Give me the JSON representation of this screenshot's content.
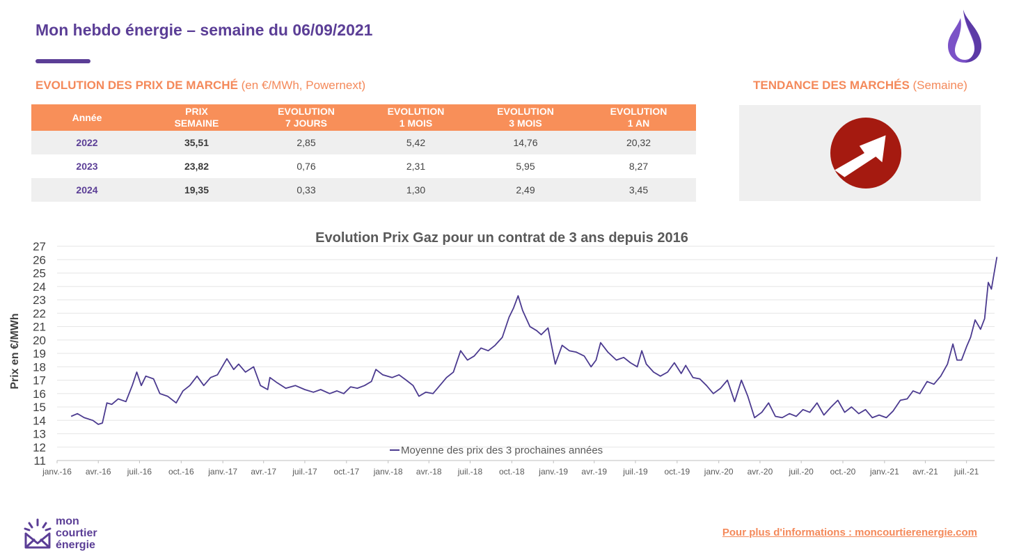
{
  "header": {
    "title": "Mon hebdo énergie – semaine du 06/09/2021"
  },
  "market_prices": {
    "title_bold": "EVOLUTION DES PRIX DE MARCHÉ",
    "title_rest": " (en €/MWh, Powernext)",
    "columns": [
      [
        "Année"
      ],
      [
        "PRIX",
        "SEMAINE"
      ],
      [
        "EVOLUTION",
        "7 JOURS"
      ],
      [
        "EVOLUTION",
        "1 MOIS"
      ],
      [
        "EVOLUTION",
        "3 MOIS"
      ],
      [
        "EVOLUTION",
        "1 AN"
      ]
    ],
    "rows": [
      [
        "2022",
        "35,51",
        "2,85",
        "5,42",
        "14,76",
        "20,32"
      ],
      [
        "2023",
        "23,82",
        "0,76",
        "2,31",
        "5,95",
        "8,27"
      ],
      [
        "2024",
        "19,35",
        "0,33",
        "1,30",
        "2,49",
        "3,45"
      ]
    ]
  },
  "market_trend": {
    "title_bold": "TENDANCE DES MARCHÉS",
    "title_rest": " (Semaine)",
    "direction_icon": "arrow-up-right-icon"
  },
  "chart_data": {
    "type": "line",
    "title": "Evolution Prix Gaz pour un contrat de 3 ans depuis 2016",
    "ylabel": "Prix en €/MWh",
    "xlabel": "",
    "ylim": [
      11,
      27
    ],
    "yticks": [
      11,
      12,
      13,
      14,
      15,
      16,
      17,
      18,
      19,
      20,
      21,
      22,
      23,
      24,
      25,
      26,
      27
    ],
    "x_tick_labels": [
      "janv.-16",
      "avr.-16",
      "juil.-16",
      "oct.-16",
      "janv.-17",
      "avr.-17",
      "juil.-17",
      "oct.-17",
      "janv.-18",
      "avr.-18",
      "juil.-18",
      "oct.-18",
      "janv.-19",
      "avr.-19",
      "juil.-19",
      "oct.-19",
      "janv.-20",
      "avr.-20",
      "juil.-20",
      "oct.-20",
      "janv.-21",
      "avr.-21",
      "juil.-21"
    ],
    "x_start": "2016-01",
    "x_end": "2021-09",
    "grid": true,
    "legend_position": "bottom",
    "series": [
      {
        "name": "Moyenne des prix des 3 prochaines années",
        "color": "#4b3a8f",
        "points": [
          [
            "2016-02-01",
            14.3
          ],
          [
            "2016-02-15",
            14.5
          ],
          [
            "2016-03-01",
            14.2
          ],
          [
            "2016-03-20",
            14.0
          ],
          [
            "2016-04-01",
            13.7
          ],
          [
            "2016-04-10",
            13.8
          ],
          [
            "2016-04-20",
            15.3
          ],
          [
            "2016-05-01",
            15.2
          ],
          [
            "2016-05-15",
            15.6
          ],
          [
            "2016-06-01",
            15.4
          ],
          [
            "2016-06-15",
            16.6
          ],
          [
            "2016-06-25",
            17.6
          ],
          [
            "2016-07-05",
            16.6
          ],
          [
            "2016-07-15",
            17.3
          ],
          [
            "2016-08-01",
            17.1
          ],
          [
            "2016-08-15",
            16.0
          ],
          [
            "2016-09-01",
            15.8
          ],
          [
            "2016-09-20",
            15.3
          ],
          [
            "2016-10-05",
            16.2
          ],
          [
            "2016-10-20",
            16.6
          ],
          [
            "2016-11-05",
            17.3
          ],
          [
            "2016-11-20",
            16.6
          ],
          [
            "2016-12-05",
            17.2
          ],
          [
            "2016-12-20",
            17.4
          ],
          [
            "2017-01-10",
            18.6
          ],
          [
            "2017-01-25",
            17.8
          ],
          [
            "2017-02-05",
            18.2
          ],
          [
            "2017-02-20",
            17.6
          ],
          [
            "2017-03-10",
            18.0
          ],
          [
            "2017-03-25",
            16.6
          ],
          [
            "2017-04-10",
            16.3
          ],
          [
            "2017-04-15",
            17.2
          ],
          [
            "2017-05-01",
            16.8
          ],
          [
            "2017-05-20",
            16.4
          ],
          [
            "2017-06-10",
            16.6
          ],
          [
            "2017-07-01",
            16.3
          ],
          [
            "2017-07-20",
            16.1
          ],
          [
            "2017-08-05",
            16.3
          ],
          [
            "2017-08-25",
            16.0
          ],
          [
            "2017-09-10",
            16.2
          ],
          [
            "2017-09-25",
            16.0
          ],
          [
            "2017-10-10",
            16.5
          ],
          [
            "2017-10-25",
            16.4
          ],
          [
            "2017-11-10",
            16.6
          ],
          [
            "2017-11-25",
            16.9
          ],
          [
            "2017-12-05",
            17.8
          ],
          [
            "2017-12-20",
            17.4
          ],
          [
            "2018-01-10",
            17.2
          ],
          [
            "2018-01-25",
            17.4
          ],
          [
            "2018-02-10",
            17.0
          ],
          [
            "2018-02-25",
            16.6
          ],
          [
            "2018-03-10",
            15.8
          ],
          [
            "2018-03-25",
            16.1
          ],
          [
            "2018-04-10",
            16.0
          ],
          [
            "2018-04-25",
            16.6
          ],
          [
            "2018-05-10",
            17.2
          ],
          [
            "2018-05-25",
            17.6
          ],
          [
            "2018-06-10",
            19.2
          ],
          [
            "2018-06-25",
            18.5
          ],
          [
            "2018-07-10",
            18.8
          ],
          [
            "2018-07-25",
            19.4
          ],
          [
            "2018-08-10",
            19.2
          ],
          [
            "2018-08-25",
            19.6
          ],
          [
            "2018-09-10",
            20.2
          ],
          [
            "2018-09-25",
            21.7
          ],
          [
            "2018-10-05",
            22.4
          ],
          [
            "2018-10-15",
            23.3
          ],
          [
            "2018-10-25",
            22.2
          ],
          [
            "2018-11-10",
            21.0
          ],
          [
            "2018-11-25",
            20.7
          ],
          [
            "2018-12-05",
            20.4
          ],
          [
            "2018-12-20",
            20.9
          ],
          [
            "2019-01-05",
            18.2
          ],
          [
            "2019-01-20",
            19.6
          ],
          [
            "2019-02-05",
            19.2
          ],
          [
            "2019-02-20",
            19.1
          ],
          [
            "2019-03-10",
            18.8
          ],
          [
            "2019-03-25",
            18.0
          ],
          [
            "2019-04-05",
            18.5
          ],
          [
            "2019-04-15",
            19.8
          ],
          [
            "2019-05-01",
            19.1
          ],
          [
            "2019-05-20",
            18.5
          ],
          [
            "2019-06-05",
            18.7
          ],
          [
            "2019-06-20",
            18.3
          ],
          [
            "2019-07-05",
            18.0
          ],
          [
            "2019-07-15",
            19.2
          ],
          [
            "2019-07-25",
            18.2
          ],
          [
            "2019-08-10",
            17.6
          ],
          [
            "2019-08-25",
            17.3
          ],
          [
            "2019-09-10",
            17.6
          ],
          [
            "2019-09-25",
            18.3
          ],
          [
            "2019-10-10",
            17.5
          ],
          [
            "2019-10-20",
            18.1
          ],
          [
            "2019-11-05",
            17.2
          ],
          [
            "2019-11-20",
            17.1
          ],
          [
            "2019-12-05",
            16.6
          ],
          [
            "2019-12-20",
            16.0
          ],
          [
            "2020-01-05",
            16.4
          ],
          [
            "2020-01-20",
            17.0
          ],
          [
            "2020-02-05",
            15.4
          ],
          [
            "2020-02-20",
            17.0
          ],
          [
            "2020-03-05",
            15.8
          ],
          [
            "2020-03-20",
            14.2
          ],
          [
            "2020-04-05",
            14.6
          ],
          [
            "2020-04-20",
            15.3
          ],
          [
            "2020-05-05",
            14.3
          ],
          [
            "2020-05-20",
            14.2
          ],
          [
            "2020-06-05",
            14.5
          ],
          [
            "2020-06-20",
            14.3
          ],
          [
            "2020-07-05",
            14.8
          ],
          [
            "2020-07-20",
            14.6
          ],
          [
            "2020-08-05",
            15.3
          ],
          [
            "2020-08-20",
            14.4
          ],
          [
            "2020-09-05",
            15.0
          ],
          [
            "2020-09-20",
            15.5
          ],
          [
            "2020-10-05",
            14.6
          ],
          [
            "2020-10-20",
            15.0
          ],
          [
            "2020-11-05",
            14.5
          ],
          [
            "2020-11-20",
            14.8
          ],
          [
            "2020-12-05",
            14.2
          ],
          [
            "2020-12-20",
            14.4
          ],
          [
            "2021-01-05",
            14.2
          ],
          [
            "2021-01-20",
            14.7
          ],
          [
            "2021-02-05",
            15.5
          ],
          [
            "2021-02-20",
            15.6
          ],
          [
            "2021-03-05",
            16.2
          ],
          [
            "2021-03-20",
            16.0
          ],
          [
            "2021-04-05",
            16.9
          ],
          [
            "2021-04-20",
            16.7
          ],
          [
            "2021-05-05",
            17.3
          ],
          [
            "2021-05-20",
            18.2
          ],
          [
            "2021-06-01",
            19.7
          ],
          [
            "2021-06-10",
            18.5
          ],
          [
            "2021-06-20",
            18.5
          ],
          [
            "2021-07-01",
            19.5
          ],
          [
            "2021-07-10",
            20.2
          ],
          [
            "2021-07-20",
            21.5
          ],
          [
            "2021-08-01",
            20.8
          ],
          [
            "2021-08-10",
            21.6
          ],
          [
            "2021-08-18",
            24.3
          ],
          [
            "2021-08-25",
            23.8
          ],
          [
            "2021-09-06",
            26.2
          ]
        ]
      }
    ]
  },
  "footer": {
    "brand_lines": [
      "mon",
      "courtier",
      "énergie"
    ],
    "link_text": "Pour plus d'informations : moncourtierenergie.com"
  }
}
